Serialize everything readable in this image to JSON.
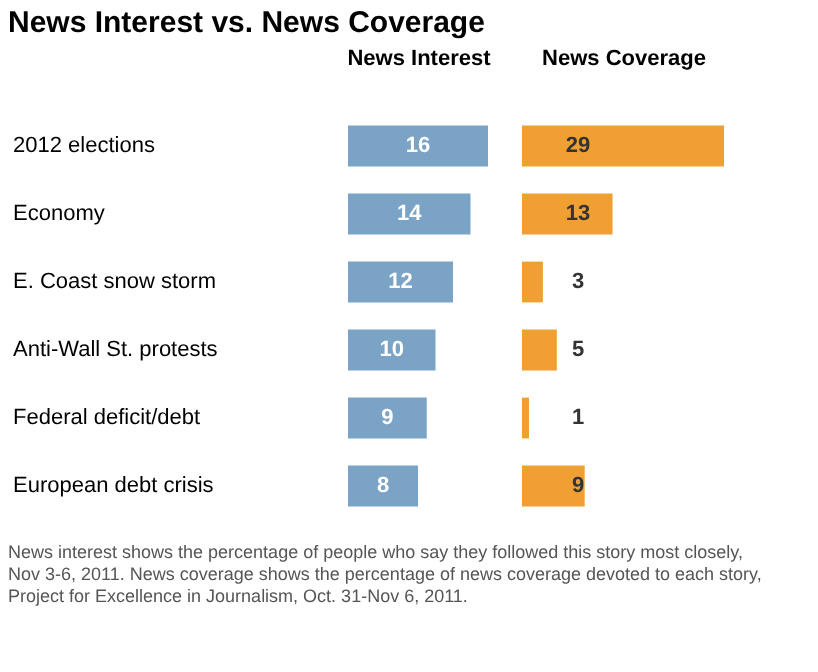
{
  "chart_data": [
    {
      "type": "bar",
      "orientation": "horizontal",
      "title": "News Interest vs. News Coverage",
      "xlabel": "News Interest",
      "categories": [
        "2012 elections",
        "Economy",
        "E. Coast snow storm",
        "Anti-Wall St. protests",
        "Federal deficit/debt",
        "European debt crisis"
      ],
      "series": [
        {
          "color": "#7ba3c6",
          "values": [
            16,
            14,
            12,
            10,
            9,
            8
          ]
        }
      ],
      "data_labels": true,
      "tick_labels": "y",
      "annotations": [
        "News interest shows the percentage of people who say they followed this story most closely, Nov 3-6, 2011. News coverage shows the percentage of news coverage devoted to each story, Project for Excellence in Journalism, Oct. 31-Nov 6, 2011."
      ]
    },
    {
      "type": "bar",
      "orientation": "horizontal",
      "xlabel": "News Coverage",
      "categories": [
        null,
        null,
        null,
        null,
        null,
        null
      ],
      "series": [
        {
          "color": "#f0a033",
          "values": [
            29,
            13,
            3,
            5,
            1,
            9
          ]
        }
      ],
      "data_labels": true,
      "tick_labels": false
    }
  ]
}
